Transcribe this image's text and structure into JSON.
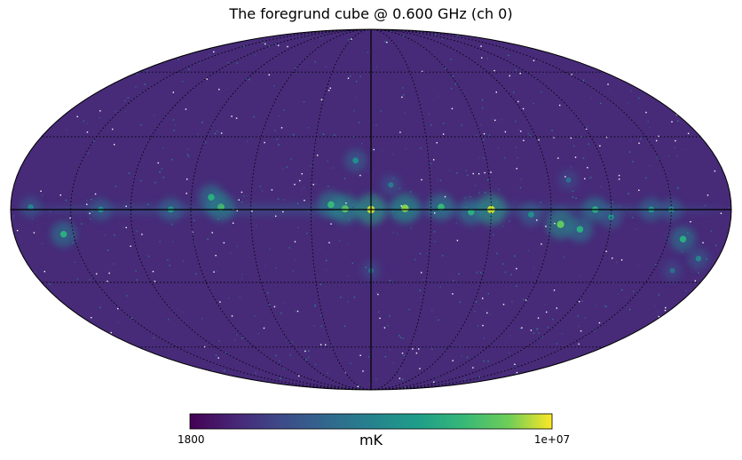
{
  "chart_data": {
    "type": "heatmap",
    "projection": "mollweide",
    "title": "The foregrund cube @ 0.600 GHz (ch 0)",
    "colormap": "viridis",
    "colorbar": {
      "min_label": "1800",
      "max_label": "1e+07",
      "unit": "mK",
      "min": 1800,
      "max": 10000000,
      "orientation": "horizontal",
      "placement": "bottom"
    },
    "graticule": {
      "meridian_spacing_deg": 30,
      "parallel_spacing_deg": 30,
      "style": "dotted",
      "equator_and_central_meridian": "solid"
    },
    "background_level": 0.14,
    "emission_regions": [
      {
        "lon": 0,
        "lat": 0,
        "level": 0.95
      },
      {
        "lon": -17,
        "lat": 0.5,
        "level": 0.9
      },
      {
        "lon": 13,
        "lat": 0.3,
        "level": 0.85
      },
      {
        "lon": -35,
        "lat": 1,
        "level": 0.75
      },
      {
        "lon": 20,
        "lat": 2,
        "level": 0.75
      },
      {
        "lon": -60,
        "lat": 0,
        "level": 0.95
      },
      {
        "lon": -50,
        "lat": -1,
        "level": 0.7
      },
      {
        "lon": -80,
        "lat": -2,
        "level": 0.55
      },
      {
        "lon": -95,
        "lat": -6,
        "level": 0.85
      },
      {
        "lon": -105,
        "lat": -8,
        "level": 0.7
      },
      {
        "lon": -112,
        "lat": 0,
        "level": 0.7
      },
      {
        "lon": -120,
        "lat": -3,
        "level": 0.55
      },
      {
        "lon": -140,
        "lat": 0,
        "level": 0.6
      },
      {
        "lon": -150,
        "lat": 0,
        "level": 0.55
      },
      {
        "lon": -158,
        "lat": -12,
        "level": 0.7
      },
      {
        "lon": -170,
        "lat": -20,
        "level": 0.5
      },
      {
        "lon": -160,
        "lat": -25,
        "level": 0.4
      },
      {
        "lon": 75,
        "lat": 1,
        "level": 0.8
      },
      {
        "lon": 80,
        "lat": 5,
        "level": 0.7
      },
      {
        "lon": 100,
        "lat": 0,
        "level": 0.6
      },
      {
        "lon": 135,
        "lat": 0,
        "level": 0.55
      },
      {
        "lon": 155,
        "lat": -10,
        "level": 0.7
      },
      {
        "lon": 170,
        "lat": 1,
        "level": 0.5
      },
      {
        "lon": 8,
        "lat": 20,
        "level": 0.55
      },
      {
        "lon": -10,
        "lat": 10,
        "level": 0.45
      },
      {
        "lon": -100,
        "lat": 12,
        "level": 0.4
      },
      {
        "lon": 0,
        "lat": -25,
        "level": 0.4
      }
    ]
  }
}
